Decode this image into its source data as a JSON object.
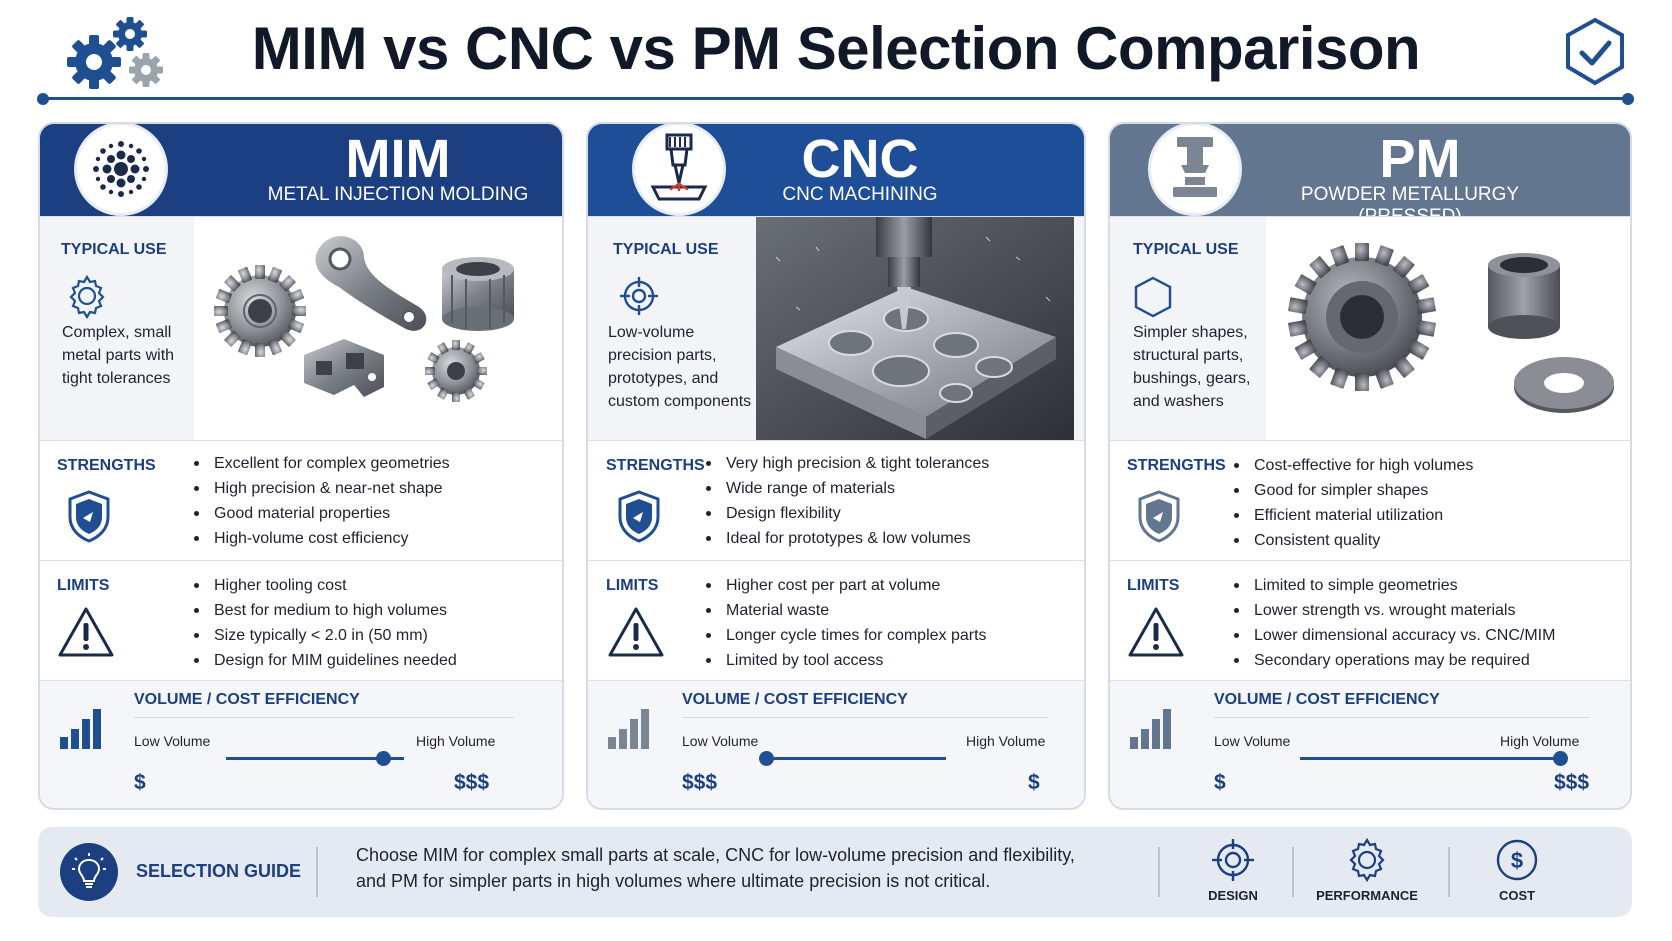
{
  "title": "MIM vs CNC vs PM Selection Comparison",
  "colors": {
    "navy": "#1b3f80",
    "blue": "#1d4e97",
    "slate": "#637690",
    "accent_line": "#1f4f91"
  },
  "header_icons": {
    "left": "gears-icon",
    "right": "shield-check-icon"
  },
  "cards": [
    {
      "id": "mim",
      "title": "MIM",
      "subtitle": "METAL INJECTION MOLDING",
      "icon": "sintered-particles-icon",
      "typical_use_label": "TYPICAL USE",
      "typical_use_icon": "gear-outline-icon",
      "typical_use_text": "Complex, small metal parts with tight tolerances",
      "photo": "mim-metal-parts-photo",
      "strengths_label": "STRENGTHS",
      "strengths": [
        "Excellent for complex geometries",
        "High precision & near-net shape",
        "Good material properties",
        "High-volume cost efficiency"
      ],
      "limits_label": "LIMITS",
      "limits": [
        "Higher tooling cost",
        "Best for medium to high volumes",
        "Size typically < 2.0 in (50 mm)",
        "Design for MIM guidelines needed"
      ],
      "volume_label": "VOLUME / COST EFFICIENCY",
      "low_volume": "Low Volume",
      "high_volume": "High Volume",
      "low_cost": "$",
      "high_cost": "$$$",
      "volume_position": 0.88
    },
    {
      "id": "cnc",
      "title": "CNC",
      "subtitle": "CNC MACHINING",
      "icon": "cnc-spindle-icon",
      "typical_use_label": "TYPICAL USE",
      "typical_use_icon": "crosshair-icon",
      "typical_use_text": "Low-volume precision parts, prototypes, and custom components",
      "photo": "cnc-machining-photo",
      "strengths_label": "STRENGTHS",
      "strengths": [
        "Very high precision & tight tolerances",
        "Wide range of materials",
        "Design flexibility",
        "Ideal for prototypes & low volumes"
      ],
      "limits_label": "LIMITS",
      "limits": [
        "Higher cost per part at volume",
        "Material waste",
        "Longer cycle times for complex parts",
        "Limited by tool access"
      ],
      "volume_label": "VOLUME / COST EFFICIENCY",
      "low_volume": "Low Volume",
      "high_volume": "High Volume",
      "low_cost": "$$$",
      "high_cost": "$",
      "volume_position": 0.0
    },
    {
      "id": "pm",
      "title": "PM",
      "subtitle": "POWDER METALLURGY (PRESSED)",
      "icon": "press-icon",
      "typical_use_label": "TYPICAL USE",
      "typical_use_icon": "hexagon-icon",
      "typical_use_text": "Simpler shapes, structural parts, bushings, gears, and washers",
      "photo": "pm-gear-bushing-washer-photo",
      "strengths_label": "STRENGTHS",
      "strengths": [
        "Cost-effective for high volumes",
        "Good for simpler shapes",
        "Efficient material utilization",
        "Consistent quality"
      ],
      "limits_label": "LIMITS",
      "limits": [
        "Limited to simple geometries",
        "Lower strength vs. wrought materials",
        "Lower dimensional accuracy vs. CNC/MIM",
        "Secondary operations may be required"
      ],
      "volume_label": "VOLUME / COST EFFICIENCY",
      "low_volume": "Low Volume",
      "high_volume": "High Volume",
      "low_cost": "$",
      "high_cost": "$$$",
      "volume_position": 1.0
    }
  ],
  "guide": {
    "label": "SELECTION GUIDE",
    "icon": "lightbulb-icon",
    "text_line1": "Choose MIM for complex small parts at scale, CNC for low-volume precision and flexibility,",
    "text_line2": "and PM for simpler parts in high volumes where ultimate precision is not critical.",
    "criteria": [
      {
        "label": "DESIGN",
        "icon": "crosshair-icon"
      },
      {
        "label": "PERFORMANCE",
        "icon": "gear-icon"
      },
      {
        "label": "COST",
        "icon": "dollar-circle-icon"
      }
    ]
  }
}
